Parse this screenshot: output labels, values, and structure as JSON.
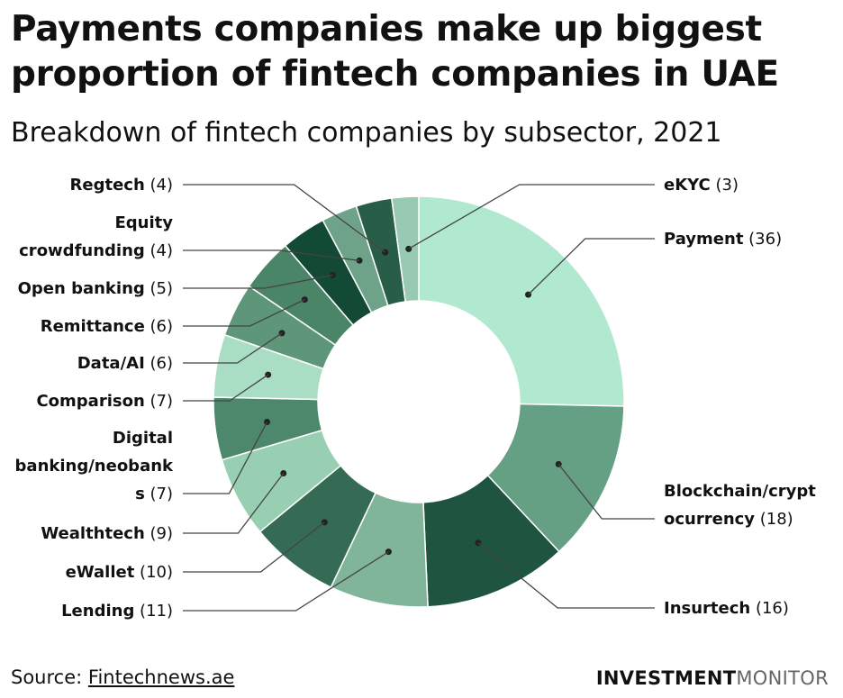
{
  "header": {
    "title": "Payments companies make up biggest proportion of fintech companies in UAE",
    "subtitle": "Breakdown of fintech companies by subsector, 2021"
  },
  "chart_data": {
    "type": "pie",
    "donut": true,
    "categories": [
      "Payment",
      "Blockchain/cryptocurrency",
      "Insurtech",
      "Lending",
      "eWallet",
      "Wealthtech",
      "Digital banking/neobanks",
      "Comparison",
      "Data/AI",
      "Remittance",
      "Open banking",
      "Equity crowdfunding",
      "Regtech",
      "eKYC"
    ],
    "values": [
      36,
      18,
      16,
      11,
      10,
      9,
      7,
      7,
      6,
      6,
      5,
      4,
      4,
      3
    ],
    "colors": [
      "#b1e8d0",
      "#66a084",
      "#1e5440",
      "#80b59a",
      "#356b54",
      "#98cfb3",
      "#4d886c",
      "#aadec4",
      "#5e967a",
      "#4b8568",
      "#134a35",
      "#6ea389",
      "#285e47",
      "#98c9b2",
      "#3a7a5d"
    ],
    "labels": [
      {
        "lines": [
          {
            "name": "Payment",
            "value": "(36)"
          }
        ]
      },
      {
        "lines": [
          {
            "name": "Blockchain/crypt",
            "value": ""
          },
          {
            "name": "ocurrency",
            "value": "(18)"
          }
        ]
      },
      {
        "lines": [
          {
            "name": "Insurtech",
            "value": "(16)"
          }
        ]
      },
      {
        "lines": [
          {
            "name": "Lending",
            "value": "(11)"
          }
        ]
      },
      {
        "lines": [
          {
            "name": "eWallet",
            "value": "(10)"
          }
        ]
      },
      {
        "lines": [
          {
            "name": "Wealthtech",
            "value": "(9)"
          }
        ]
      },
      {
        "lines": [
          {
            "name": "Digital",
            "value": ""
          },
          {
            "name": "banking/neobank",
            "value": ""
          },
          {
            "name": "s",
            "value": "(7)"
          }
        ]
      },
      {
        "lines": [
          {
            "name": "Comparison",
            "value": "(7)"
          }
        ]
      },
      {
        "lines": [
          {
            "name": "Data/AI",
            "value": "(6)"
          }
        ]
      },
      {
        "lines": [
          {
            "name": "Remittance",
            "value": "(6)"
          }
        ]
      },
      {
        "lines": [
          {
            "name": "Open banking",
            "value": "(5)"
          }
        ]
      },
      {
        "lines": [
          {
            "name": "Equity",
            "value": ""
          },
          {
            "name": "crowdfunding",
            "value": "(4)"
          }
        ]
      },
      {
        "lines": [
          {
            "name": "Regtech",
            "value": "(4)"
          }
        ]
      },
      {
        "lines": [
          {
            "name": "eKYC",
            "value": "(3)"
          }
        ]
      }
    ]
  },
  "footer": {
    "source_prefix": "Source: ",
    "source_link": "Fintechnews.ae",
    "brand_bold": "INVESTMENT",
    "brand_light": "MONITOR"
  }
}
